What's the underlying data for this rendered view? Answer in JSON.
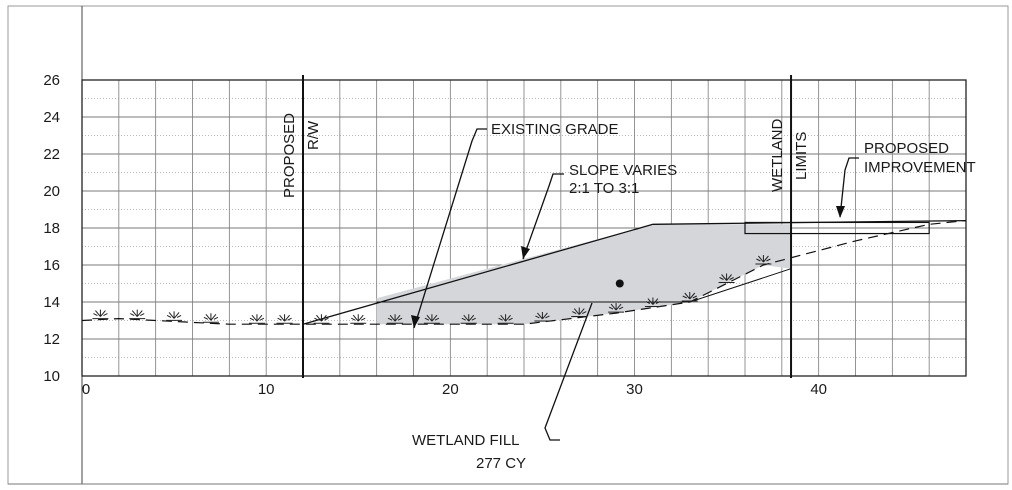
{
  "chart_data": {
    "type": "cross-section",
    "x_ticks": [
      {
        "value": 0,
        "label": "0"
      },
      {
        "value": 10,
        "label": "10"
      },
      {
        "value": 20,
        "label": "20"
      },
      {
        "value": 30,
        "label": "30"
      },
      {
        "value": 40,
        "label": "40"
      }
    ],
    "y_ticks": [
      {
        "value": 10,
        "label": "10"
      },
      {
        "value": 12,
        "label": "12"
      },
      {
        "value": 14,
        "label": "14"
      },
      {
        "value": 16,
        "label": "16"
      },
      {
        "value": 18,
        "label": "18"
      },
      {
        "value": 20,
        "label": "20"
      },
      {
        "value": 22,
        "label": "22"
      },
      {
        "value": 24,
        "label": "24"
      },
      {
        "value": 26,
        "label": "26"
      }
    ],
    "xlim": [
      0,
      48
    ],
    "ylim": [
      10,
      26
    ],
    "grid": true,
    "existing_grade": [
      [
        0,
        13.0
      ],
      [
        2,
        13.1
      ],
      [
        4,
        13.0
      ],
      [
        6,
        12.9
      ],
      [
        8,
        12.8
      ],
      [
        10,
        12.8
      ],
      [
        12,
        12.8
      ],
      [
        24,
        12.8
      ],
      [
        29,
        13.4
      ],
      [
        33,
        14.0
      ],
      [
        37,
        16.0
      ],
      [
        42,
        17.3
      ],
      [
        46,
        18.2
      ],
      [
        48,
        18.4
      ]
    ],
    "proposed_grade": [
      [
        12,
        12.8
      ],
      [
        31,
        18.2
      ],
      [
        48,
        18.4
      ]
    ],
    "fill_polygon": [
      [
        16,
        14.2
      ],
      [
        31,
        18.2
      ],
      [
        38.5,
        18.2
      ],
      [
        38.5,
        15.8
      ],
      [
        37,
        16.0
      ],
      [
        33,
        14.0
      ],
      [
        29,
        13.4
      ],
      [
        24,
        12.8
      ],
      [
        16,
        12.8
      ]
    ],
    "step_line": [
      [
        16,
        14.0
      ],
      [
        33,
        14.0
      ],
      [
        38.5,
        15.8
      ]
    ],
    "improvement": {
      "x0": 36,
      "x1": 46,
      "y_top": 18.3,
      "y_bottom": 17.7
    },
    "proposed_rw_x": 12,
    "wetland_limits_x": 38.5,
    "wetland_symbols_x": [
      1,
      3,
      5,
      7,
      9.5,
      11,
      13,
      15,
      17,
      19,
      21,
      23,
      25,
      27,
      29,
      31,
      33,
      35,
      37
    ],
    "fill_marker": [
      29.2,
      15.0
    ]
  },
  "labels": {
    "proposed_rw": [
      "PROPOSED",
      "R/W"
    ],
    "wetland_limits": [
      "WETLAND",
      "LIMITS"
    ],
    "existing_grade": "EXISTING GRADE",
    "slope_varies": [
      "SLOPE VARIES",
      "2:1 TO 3:1"
    ],
    "proposed_improvement": [
      "PROPOSED",
      "IMPROVEMENT"
    ],
    "wetland_fill": [
      "WETLAND FILL",
      "277 CY"
    ]
  },
  "colors": {
    "fill": "#d4d6da",
    "grid": "#7a7a7a",
    "line": "#111111"
  }
}
